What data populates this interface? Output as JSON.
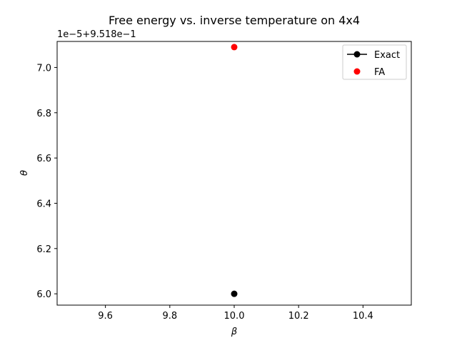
{
  "chart_data": {
    "type": "scatter",
    "title": "Free energy vs. inverse temperature on 4x4",
    "xlabel": "β",
    "ylabel": "θ",
    "offset_text": "1e−5+9.518e−1",
    "xlim": [
      9.45,
      10.55
    ],
    "ylim": [
      5.95,
      7.115
    ],
    "x_ticks": [
      9.6,
      9.8,
      10.0,
      10.2,
      10.4
    ],
    "x_tick_labels": [
      "9.6",
      "9.8",
      "10.0",
      "10.2",
      "10.4"
    ],
    "y_ticks": [
      6.0,
      6.2,
      6.4,
      6.6,
      6.8,
      7.0
    ],
    "y_tick_labels": [
      "6.0",
      "6.2",
      "6.4",
      "6.6",
      "6.8",
      "7.0"
    ],
    "grid": false,
    "legend_position": "top-right",
    "series": [
      {
        "name": "Exact",
        "color": "#000000",
        "marker": "line-marker",
        "x": [
          10.0
        ],
        "y": [
          6.0
        ]
      },
      {
        "name": "FA",
        "color": "#ff0000",
        "marker": "marker-only",
        "x": [
          10.0
        ],
        "y": [
          7.09
        ]
      }
    ]
  }
}
